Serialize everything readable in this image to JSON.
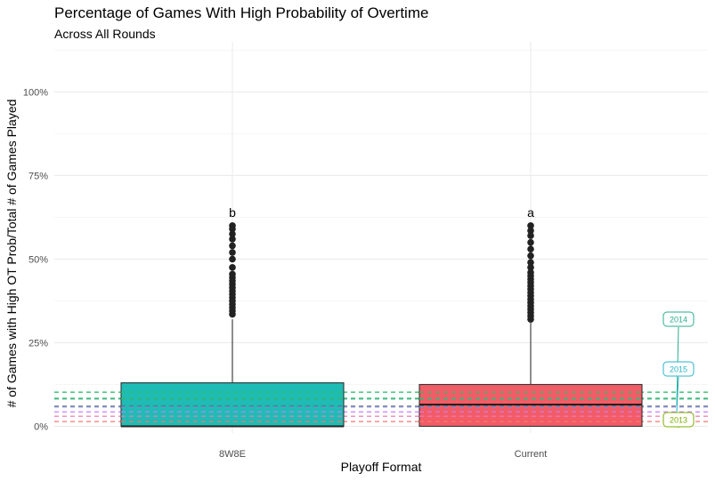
{
  "chart_data": {
    "type": "boxplot",
    "title": "Percentage of Games With High Probability of Overtime",
    "subtitle": "Across All Rounds",
    "xlabel": "Playoff Format",
    "ylabel": "# of Games with High OT Prob/Total # of Games Played",
    "categories": [
      "8W8E",
      "Current"
    ],
    "ylim": [
      -0.02,
      1.15
    ],
    "yticks": [
      0,
      0.25,
      0.5,
      0.75,
      1.0
    ],
    "ytick_labels": [
      "0%",
      "25%",
      "50%",
      "75%",
      "100%"
    ],
    "grid": true,
    "boxes": [
      {
        "category": "8W8E",
        "fill": "#1ebcb4",
        "q1": 0.0,
        "median": 0.0,
        "q3": 0.13,
        "whisker_low": 0.0,
        "whisker_high": 0.32,
        "outliers": [
          0.335,
          0.345,
          0.355,
          0.365,
          0.375,
          0.385,
          0.395,
          0.405,
          0.415,
          0.425,
          0.435,
          0.445,
          0.455,
          0.475,
          0.5,
          0.52,
          0.54,
          0.56,
          0.575,
          0.59,
          0.6
        ],
        "letter": "b"
      },
      {
        "category": "Current",
        "fill": "#f25c66",
        "q1": 0.0,
        "median": 0.065,
        "q3": 0.125,
        "whisker_low": 0.0,
        "whisker_high": 0.31,
        "outliers": [
          0.32,
          0.33,
          0.34,
          0.35,
          0.36,
          0.37,
          0.38,
          0.39,
          0.4,
          0.41,
          0.42,
          0.43,
          0.44,
          0.45,
          0.46,
          0.475,
          0.49,
          0.51,
          0.53,
          0.55,
          0.57,
          0.585,
          0.6
        ],
        "letter": "a"
      }
    ],
    "reference_lines": [
      {
        "y": 0.102,
        "color": "#2ebf6a"
      },
      {
        "y": 0.084,
        "color": "#2ebf6a"
      },
      {
        "y": 0.082,
        "color": "#36b37e"
      },
      {
        "y": 0.06,
        "color": "#5a5a5a"
      },
      {
        "y": 0.058,
        "color": "#7d8cdb"
      },
      {
        "y": 0.043,
        "color": "#c77cff"
      },
      {
        "y": 0.03,
        "color": "#f07ab4"
      },
      {
        "y": 0.014,
        "color": "#f8766d"
      }
    ],
    "annotations": [
      {
        "label": "2014",
        "color": "#27ae8f",
        "value": 0.06
      },
      {
        "label": "2015",
        "color": "#28b4c8",
        "value": 0.043
      },
      {
        "label": "2013",
        "color": "#7cae00",
        "value": 0.014
      }
    ]
  }
}
